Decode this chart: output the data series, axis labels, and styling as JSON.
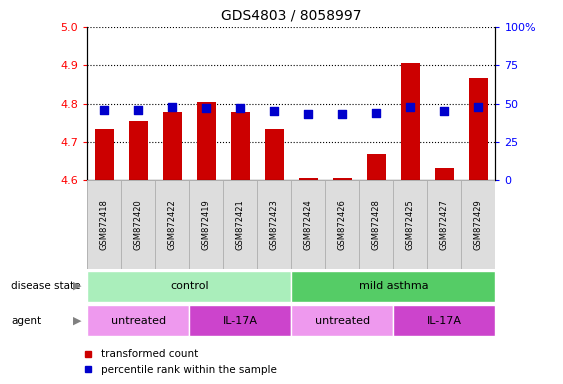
{
  "title": "GDS4803 / 8058997",
  "samples": [
    "GSM872418",
    "GSM872420",
    "GSM872422",
    "GSM872419",
    "GSM872421",
    "GSM872423",
    "GSM872424",
    "GSM872426",
    "GSM872428",
    "GSM872425",
    "GSM872427",
    "GSM872429"
  ],
  "transformed_count": [
    4.735,
    4.755,
    4.778,
    4.805,
    4.778,
    4.733,
    4.607,
    4.607,
    4.67,
    4.905,
    4.633,
    4.868
  ],
  "percentile_rank": [
    46,
    46,
    48,
    47,
    47,
    45,
    43,
    43,
    44,
    48,
    45,
    48
  ],
  "ylim_left": [
    4.6,
    5.0
  ],
  "ylim_right": [
    0,
    100
  ],
  "yticks_left": [
    4.6,
    4.7,
    4.8,
    4.9,
    5.0
  ],
  "yticks_right": [
    0,
    25,
    50,
    75,
    100
  ],
  "ytick_labels_right": [
    "0",
    "25",
    "50",
    "75",
    "100%"
  ],
  "disease_state_groups": [
    {
      "label": "control",
      "start": 0,
      "end": 5,
      "color": "#AAEEBB"
    },
    {
      "label": "mild asthma",
      "start": 6,
      "end": 11,
      "color": "#55CC66"
    }
  ],
  "agent_groups": [
    {
      "label": "untreated",
      "start": 0,
      "end": 2,
      "color": "#EE99EE"
    },
    {
      "label": "IL-17A",
      "start": 3,
      "end": 5,
      "color": "#CC44CC"
    },
    {
      "label": "untreated",
      "start": 6,
      "end": 8,
      "color": "#EE99EE"
    },
    {
      "label": "IL-17A",
      "start": 9,
      "end": 11,
      "color": "#CC44CC"
    }
  ],
  "bar_color": "#CC0000",
  "dot_color": "#0000CC",
  "bar_width": 0.55,
  "dot_size": 30,
  "base_value": 4.6,
  "sample_bg_color": "#DDDDDD",
  "sample_border_color": "#AAAAAA"
}
